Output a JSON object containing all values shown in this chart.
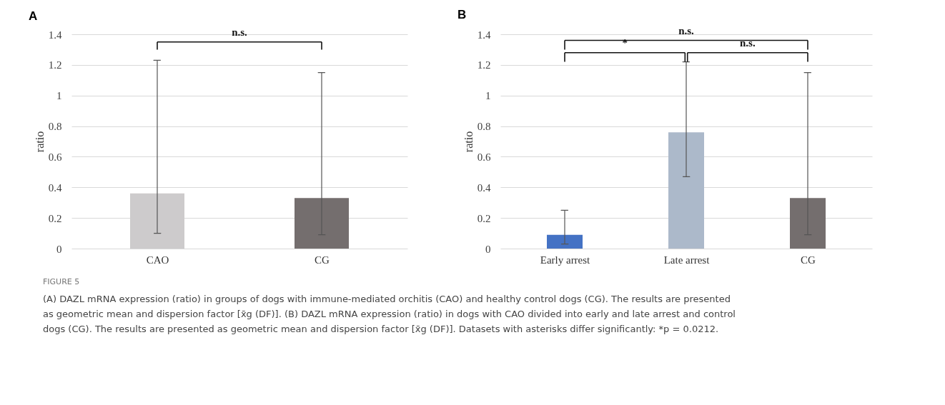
{
  "chart_data": [
    {
      "type": "bar",
      "title": "A",
      "ylabel": "ratio",
      "categories": [
        "CAO",
        "CG"
      ],
      "values": [
        0.36,
        0.33
      ],
      "colors": [
        "#cdcbcc",
        "#746e6e"
      ],
      "errors": [
        [
          0.1,
          1.23
        ],
        [
          0.09,
          1.15
        ]
      ],
      "ylim": [
        0,
        1.4
      ],
      "yticks": [
        0,
        0.2,
        0.4,
        0.6,
        0.8,
        1,
        1.2,
        1.4
      ],
      "grid": "y",
      "annotations": [
        "n.s.",
        "FIGURE 5",
        "(A) DAZL mRNA expression (ratio) in groups of dogs with immune-mediated orchitis (CAO) and healthy control dogs (CG). The results are presented\nas geometric mean and dispersion factor [x̄g (DF)]. (B) DAZL mRNA expression (ratio) in dogs with CAO divided into early and late arrest and control\ndogs (CG). The results are presented as geometric mean and dispersion factor [x̄g (DF)]. Datasets with asterisks differ significantly: *p = 0.0212."
      ]
    },
    {
      "type": "bar",
      "title": "B",
      "ylabel": "ratio",
      "categories": [
        "Early arrest",
        "Late arrest",
        "CG"
      ],
      "values": [
        0.09,
        0.76,
        0.33
      ],
      "colors": [
        "#4472c4",
        "#acb9ca",
        "#746e6e"
      ],
      "errors": [
        [
          0.03,
          0.25
        ],
        [
          0.47,
          1.22
        ],
        [
          0.09,
          1.15
        ]
      ],
      "ylim": [
        0,
        1.4
      ],
      "yticks": [
        0,
        0.2,
        0.4,
        0.6,
        0.8,
        1,
        1.2,
        1.4
      ],
      "grid": "y",
      "annotations": [
        "*",
        "n.s.",
        "n.s."
      ]
    }
  ]
}
